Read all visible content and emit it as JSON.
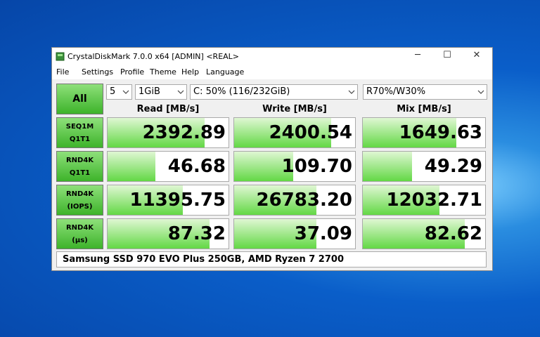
{
  "window": {
    "title": "CrystalDiskMark 7.0.0 x64 [ADMIN] <REAL>"
  },
  "menu": [
    "File",
    "Settings",
    "Profile",
    "Theme",
    "Help",
    "Language"
  ],
  "controls": {
    "all": "All",
    "count": "5",
    "size": "1GiB",
    "drive": "C: 50% (116/232GiB)",
    "mix": "R70%/W30%"
  },
  "columns": [
    "Read [MB/s]",
    "Write [MB/s]",
    "Mix [MB/s]"
  ],
  "rows": [
    {
      "label": [
        "SEQ1M",
        "Q1T1"
      ],
      "values": [
        "2392.89",
        "2400.54",
        "1649.63"
      ]
    },
    {
      "label": [
        "RND4K",
        "Q1T1"
      ],
      "values": [
        "46.68",
        "109.70",
        "49.29"
      ]
    },
    {
      "label": [
        "RND4K",
        "(IOPS)"
      ],
      "values": [
        "11395.75",
        "26783.20",
        "12032.71"
      ]
    },
    {
      "label": [
        "RND4K",
        "(μs)"
      ],
      "values": [
        "87.32",
        "37.09",
        "82.62"
      ]
    }
  ],
  "comment": "Samsung SSD 970 EVO Plus 250GB, AMD Ryzen 7 2700"
}
